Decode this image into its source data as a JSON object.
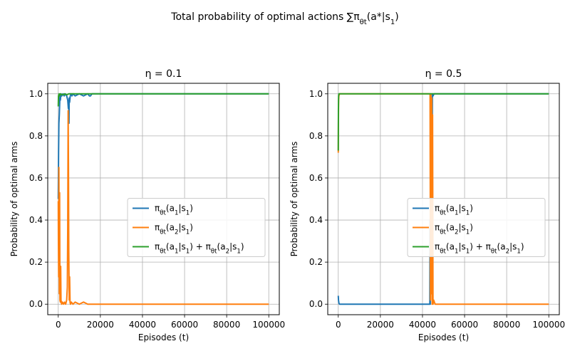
{
  "suptitle": "Total probability of optimal actions ∑π_{θ_t}(a*|s_1)",
  "colors": {
    "blue": "#1f77b4",
    "orange": "#ff7f0e",
    "green": "#2ca02c"
  },
  "chart_data": [
    {
      "type": "line",
      "title": "η = 0.1",
      "xlabel": "Episodes (t)",
      "ylabel": "Probability of optimal arms",
      "xlim": [
        -5000,
        105000
      ],
      "ylim": [
        -0.05,
        1.05
      ],
      "xticks": [
        0,
        20000,
        40000,
        60000,
        80000,
        100000
      ],
      "yticks": [
        0.0,
        0.2,
        0.4,
        0.6,
        0.8,
        1.0
      ],
      "xtick_labels": [
        "0",
        "20000",
        "40000",
        "60000",
        "80000",
        "100000"
      ],
      "ytick_labels": [
        "0.0",
        "0.2",
        "0.4",
        "0.6",
        "0.8",
        "1.0"
      ],
      "grid": true,
      "legend_location": "center-right",
      "series": [
        {
          "name": "π_{θ_t}(a_1|s_1)",
          "color": "#1f77b4",
          "x": [
            0,
            150,
            300,
            500,
            800,
            1000,
            1300,
            1700,
            2200,
            2800,
            3400,
            4000,
            4500,
            4800,
            5000,
            5100,
            5200,
            5400,
            5700,
            6000,
            6500,
            7000,
            8000,
            10000,
            12000,
            14000,
            14800,
            15300,
            16000,
            20000,
            30000,
            50000,
            70000,
            100000
          ],
          "y": [
            0.5,
            0.72,
            0.86,
            0.9,
            0.99,
            0.97,
            1.0,
            0.99,
            1.0,
            0.99,
            1.0,
            0.99,
            0.97,
            0.93,
            0.97,
            0.86,
            0.98,
            0.96,
            0.99,
            1.0,
            0.99,
            1.0,
            0.99,
            1.0,
            0.99,
            1.0,
            0.99,
            0.99,
            1.0,
            1.0,
            1.0,
            1.0,
            1.0,
            1.0
          ]
        },
        {
          "name": "π_{θ_t}(a_2|s_1)",
          "color": "#ff7f0e",
          "x": [
            0,
            80,
            200,
            300,
            400,
            500,
            650,
            800,
            1000,
            1150,
            1300,
            1600,
            2000,
            2500,
            3000,
            3500,
            4000,
            4300,
            4500,
            4700,
            4850,
            5000,
            5100,
            5200,
            5400,
            5600,
            5800,
            6200,
            7000,
            8000,
            10000,
            12000,
            14000,
            16000,
            20000,
            30000,
            50000,
            70000,
            100000
          ],
          "y": [
            0.49,
            0.28,
            0.13,
            0.65,
            0.3,
            0.05,
            0.53,
            0.02,
            0.01,
            0.18,
            0.02,
            0.0,
            0.01,
            0.0,
            0.01,
            0.0,
            0.02,
            0.08,
            0.37,
            0.92,
            0.65,
            0.25,
            0.14,
            0.02,
            0.13,
            0.01,
            0.0,
            0.01,
            0.0,
            0.01,
            0.0,
            0.01,
            0.0,
            0.0,
            0.0,
            0.0,
            0.0,
            0.0,
            0.0
          ]
        },
        {
          "name": "π_{θ_t}(a_1|s_1) + π_{θ_t}(a_2|s_1)",
          "color": "#2ca02c",
          "x": [
            0,
            100,
            250,
            400,
            700,
            1000,
            2000,
            3000,
            4000,
            5000,
            6000,
            8000,
            10000,
            20000,
            50000,
            100000
          ],
          "y": [
            0.94,
            0.99,
            0.995,
            1.0,
            0.99,
            1.0,
            0.995,
            1.0,
            0.995,
            1.0,
            1.0,
            1.0,
            1.0,
            1.0,
            1.0,
            1.0
          ]
        }
      ]
    },
    {
      "type": "line",
      "title": "η = 0.5",
      "xlabel": "Episodes (t)",
      "ylabel": "Probability of optimal arms",
      "xlim": [
        -5000,
        105000
      ],
      "ylim": [
        -0.05,
        1.05
      ],
      "xticks": [
        0,
        20000,
        40000,
        60000,
        80000,
        100000
      ],
      "yticks": [
        0.0,
        0.2,
        0.4,
        0.6,
        0.8,
        1.0
      ],
      "xtick_labels": [
        "0",
        "20000",
        "40000",
        "60000",
        "80000",
        "100000"
      ],
      "ytick_labels": [
        "0.0",
        "0.2",
        "0.4",
        "0.6",
        "0.8",
        "1.0"
      ],
      "grid": true,
      "legend_location": "center-right",
      "series": [
        {
          "name": "π_{θ_t}(a_1|s_1)",
          "color": "#1f77b4",
          "x": [
            0,
            100,
            300,
            600,
            1000,
            5000,
            20000,
            40000,
            43500,
            43600,
            43700,
            44000,
            44200,
            44400,
            44500,
            44700,
            45000,
            45500,
            50000,
            70000,
            100000
          ],
          "y": [
            0.04,
            0.02,
            0.005,
            0.0,
            0.0,
            0.0,
            0.0,
            0.0,
            0.0,
            0.4,
            0.0,
            0.6,
            0.05,
            0.95,
            0.2,
            1.0,
            0.99,
            1.0,
            1.0,
            1.0,
            1.0
          ]
        },
        {
          "name": "π_{θ_t}(a_2|s_1)",
          "color": "#ff7f0e",
          "x": [
            0,
            50,
            150,
            300,
            600,
            1000,
            5000,
            20000,
            40000,
            43600,
            43800,
            44000,
            44200,
            44400,
            44600,
            44800,
            45000,
            45300,
            46000,
            50000,
            70000,
            100000
          ],
          "y": [
            0.72,
            0.85,
            0.97,
            0.99,
            1.0,
            1.0,
            1.0,
            1.0,
            1.0,
            1.0,
            0.02,
            1.0,
            0.05,
            0.98,
            0.0,
            0.9,
            0.0,
            0.02,
            0.0,
            0.0,
            0.0,
            0.0
          ]
        },
        {
          "name": "π_{θ_t}(a_1|s_1) + π_{θ_t}(a_2|s_1)",
          "color": "#2ca02c",
          "x": [
            0,
            60,
            150,
            300,
            600,
            1000,
            10000,
            50000,
            100000
          ],
          "y": [
            0.73,
            0.92,
            0.99,
            1.0,
            1.0,
            1.0,
            1.0,
            1.0,
            1.0
          ]
        }
      ]
    }
  ]
}
